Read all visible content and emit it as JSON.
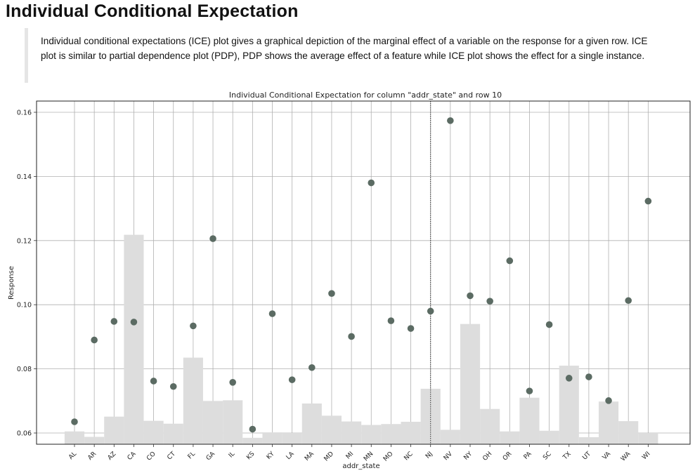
{
  "page": {
    "title": "Individual Conditional Expectation",
    "description": "Individual conditional expectations (ICE) plot gives a graphical depiction of the marginal effect of a variable on the response for a given row. ICE plot is similar to partial dependence plot (PDP), PDP shows the average effect of a feature while ICE plot shows the effect for a single instance."
  },
  "colors": {
    "point": "#5b6b63",
    "bar": "#dddddd",
    "grid": "#b0b0b0",
    "reference_line": "#333333"
  },
  "chart_data": {
    "type": "scatter",
    "title": "Individual Conditional Expectation for column \"addr_state\" and row 10",
    "xlabel": "addr_state",
    "ylabel": "Response",
    "grid": true,
    "ylim": [
      0.0565,
      0.1635
    ],
    "yticks": [
      0.06,
      0.08,
      0.1,
      0.12,
      0.14,
      0.16
    ],
    "ytick_labels": [
      "0.06",
      "0.08",
      "0.10",
      "0.12",
      "0.14",
      "0.16"
    ],
    "categories": [
      "AL",
      "AR",
      "AZ",
      "CA",
      "CO",
      "CT",
      "FL",
      "GA",
      "IL",
      "KS",
      "KY",
      "LA",
      "MA",
      "MD",
      "MI",
      "MN",
      "MO",
      "NC",
      "NJ",
      "NV",
      "NY",
      "OH",
      "OR",
      "PA",
      "SC",
      "TX",
      "UT",
      "VA",
      "WA",
      "WI"
    ],
    "series": [
      {
        "kind": "points",
        "values": [
          0.0635,
          0.089,
          0.0948,
          0.0946,
          0.0762,
          0.0745,
          0.0934,
          0.1206,
          0.0758,
          0.0612,
          0.0972,
          0.0766,
          0.0804,
          0.1035,
          0.0901,
          0.138,
          0.095,
          0.0926,
          0.098,
          0.1574,
          0.1028,
          0.1011,
          0.1137,
          0.0731,
          0.0938,
          0.0771,
          0.0775,
          0.0701,
          0.1013,
          0.1323
        ]
      },
      {
        "kind": "histogram",
        "values": [
          0.0605,
          0.0588,
          0.0651,
          0.1218,
          0.0638,
          0.0629,
          0.0835,
          0.07,
          0.0702,
          0.0585,
          0.0602,
          0.06,
          0.0692,
          0.0654,
          0.0636,
          0.0625,
          0.0628,
          0.0635,
          0.0738,
          0.061,
          0.094,
          0.0675,
          0.0605,
          0.071,
          0.0607,
          0.081,
          0.0587,
          0.0698,
          0.0637,
          0.06
        ]
      }
    ],
    "reference_line": {
      "category": "NJ",
      "style": "dotted"
    }
  }
}
